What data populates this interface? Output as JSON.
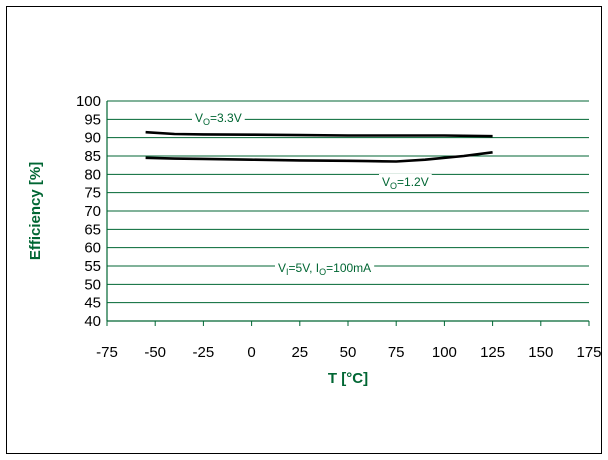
{
  "chart_data": {
    "type": "line",
    "title": "",
    "xlabel": "T [°C]",
    "ylabel": "Efficiency [%]",
    "xlim": [
      -75,
      175
    ],
    "ylim": [
      40,
      100
    ],
    "x_ticks": [
      -75,
      -50,
      -25,
      0,
      25,
      50,
      75,
      100,
      125,
      150,
      175
    ],
    "y_ticks": [
      40,
      45,
      50,
      55,
      60,
      65,
      70,
      75,
      80,
      85,
      90,
      95,
      100
    ],
    "grid": "horizontal",
    "series": [
      {
        "name": "VO=3.3V",
        "x": [
          -55,
          -40,
          -25,
          0,
          25,
          50,
          75,
          100,
          125
        ],
        "y": [
          91.5,
          91.0,
          90.9,
          90.8,
          90.7,
          90.6,
          90.6,
          90.6,
          90.4
        ]
      },
      {
        "name": "VO=1.2V",
        "x": [
          -55,
          -40,
          -25,
          0,
          25,
          50,
          60,
          75,
          90,
          100,
          110,
          125
        ],
        "y": [
          84.5,
          84.3,
          84.2,
          84.0,
          83.8,
          83.7,
          83.6,
          83.5,
          84.0,
          84.5,
          85.0,
          86.0
        ]
      }
    ],
    "annotations": [
      {
        "main": "V",
        "sub": "O",
        "rest": "=3.3V"
      },
      {
        "main": "V",
        "sub": "O",
        "rest": "=1.2V"
      },
      {
        "main": "V",
        "sub": "I",
        "rest": "=5V, I",
        "sub2": "O",
        "rest2": "=100mA"
      }
    ]
  }
}
